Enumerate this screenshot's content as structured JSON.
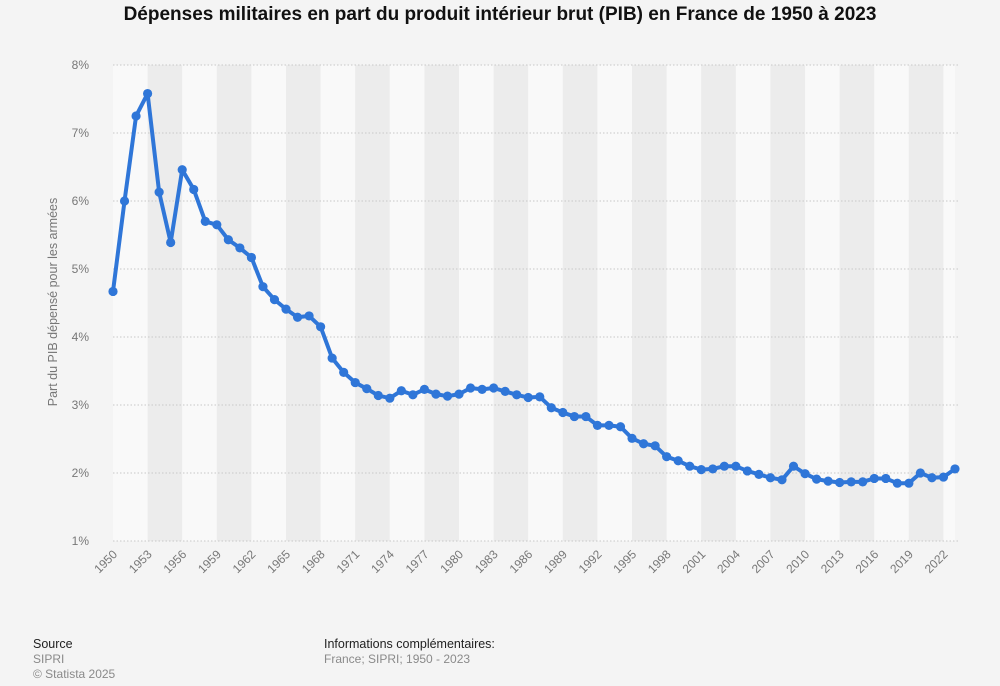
{
  "title": "Dépenses militaires en part du produit intérieur brut (PIB) en France de 1950 à 2023",
  "footer": {
    "source_heading": "Source",
    "source_name": "SIPRI",
    "copyright": "© Statista 2025",
    "info_heading": "Informations complémentaires:",
    "info_text": "France; SIPRI; 1950 - 2023"
  },
  "colors": {
    "line": "#2f76d8",
    "background": "#f4f4f4",
    "band_dark": "#ececec",
    "band_light": "#f9f9f9",
    "grid": "#c8c8c8",
    "tick_text": "#777777"
  },
  "chart_data": {
    "type": "line",
    "title": "Dépenses militaires en part du produit intérieur brut (PIB) en France de 1950 à 2023",
    "xlabel": "",
    "ylabel": "Part du PIB dépensé pour les armées",
    "ylim": [
      1,
      8
    ],
    "y_ticks": [
      "1%",
      "2%",
      "3%",
      "4%",
      "5%",
      "6%",
      "7%",
      "8%"
    ],
    "x_tick_labels": [
      "1950",
      "1953",
      "1956",
      "1959",
      "1962",
      "1965",
      "1968",
      "1971",
      "1974",
      "1977",
      "1980",
      "1983",
      "1986",
      "1989",
      "1992",
      "1995",
      "1998",
      "2001",
      "2004",
      "2007",
      "2010",
      "2013",
      "2016",
      "2019",
      "2022"
    ],
    "grid": true,
    "series": [
      {
        "x": [
          1950,
          1951,
          1952,
          1953,
          1954,
          1955,
          1956,
          1957,
          1958,
          1959,
          1960,
          1961,
          1962,
          1963,
          1964,
          1965,
          1966,
          1967,
          1968,
          1969,
          1970,
          1971,
          1972,
          1973,
          1974,
          1975,
          1976,
          1977,
          1978,
          1979,
          1980,
          1981,
          1982,
          1983,
          1984,
          1985,
          1986,
          1987,
          1988,
          1989,
          1990,
          1991,
          1992,
          1993,
          1994,
          1995,
          1996,
          1997,
          1998,
          1999,
          2000,
          2001,
          2002,
          2003,
          2004,
          2005,
          2006,
          2007,
          2008,
          2009,
          2010,
          2011,
          2012,
          2013,
          2014,
          2015,
          2016,
          2017,
          2018,
          2019,
          2020,
          2021,
          2022,
          2023
        ],
        "values": [
          4.67,
          6.0,
          7.25,
          7.58,
          6.13,
          5.39,
          6.46,
          6.17,
          5.7,
          5.65,
          5.43,
          5.31,
          5.17,
          4.74,
          4.55,
          4.41,
          4.29,
          4.31,
          4.15,
          3.69,
          3.48,
          3.33,
          3.24,
          3.14,
          3.1,
          3.21,
          3.15,
          3.23,
          3.16,
          3.13,
          3.16,
          3.25,
          3.23,
          3.25,
          3.2,
          3.15,
          3.11,
          3.12,
          2.96,
          2.89,
          2.83,
          2.83,
          2.7,
          2.7,
          2.68,
          2.51,
          2.43,
          2.4,
          2.24,
          2.18,
          2.1,
          2.05,
          2.06,
          2.1,
          2.1,
          2.03,
          1.98,
          1.93,
          1.9,
          2.1,
          1.99,
          1.91,
          1.88,
          1.86,
          1.87,
          1.87,
          1.92,
          1.92,
          1.85,
          1.85,
          2.0,
          1.93,
          1.94,
          2.06
        ]
      }
    ]
  }
}
